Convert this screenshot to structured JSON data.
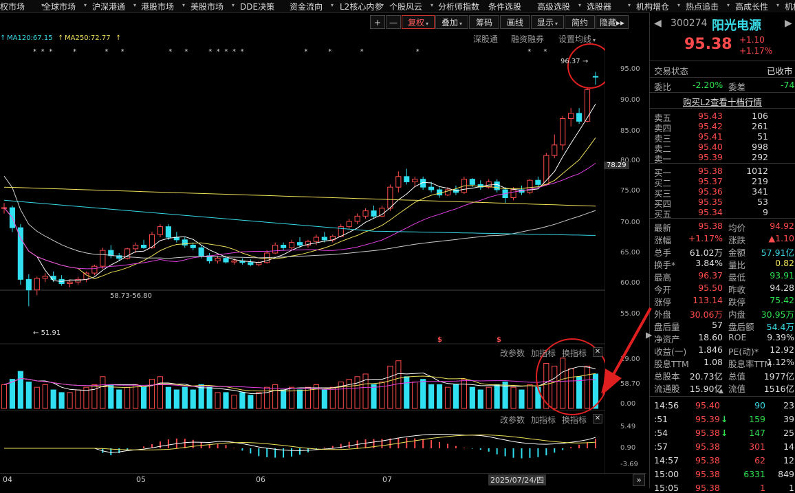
{
  "menu": [
    "权市场",
    "全球市场",
    "沪深港通",
    "港股市场",
    "美股市场",
    "DDE决策",
    "资金流向",
    "L2核心内参",
    "个股风云",
    "分析师指数",
    "条件选股",
    "高级选股",
    "选股器",
    "机构增仓",
    "热点追击",
    "高成长性",
    "机构"
  ],
  "toolbar": {
    "plus": "+",
    "minus": "—",
    "fuquan": "复权",
    "diejia": "叠加",
    "chouma": "筹码",
    "huaxian": "画线",
    "xianshi": "显示",
    "jianyue": "简约",
    "yincang": "隐藏",
    "shengutong": "深股通",
    "rongzi": "融资融券",
    "junxian": "设置均线"
  },
  "ma_labels": {
    "ma120": "MA120:67.15",
    "ma250": "MA250:72.77"
  },
  "axis_price": [
    "95.00",
    "90.00",
    "85.00",
    "80.00",
    "78.29",
    "75.00",
    "70.00",
    "65.00",
    "60.00",
    "55.00"
  ],
  "axis_vol": [
    "19.00",
    "58.70",
    "0.00"
  ],
  "axis_macd": [
    "5.49",
    "0.90",
    "-3.69"
  ],
  "annotations": {
    "high": "96.37",
    "low": "51.91",
    "mid": "58.73-56.80"
  },
  "ind_panel1": {
    "params": "改参数",
    "add": "加指标",
    "switch": "换指标"
  },
  "ind_panel2": {
    "params": "改参数",
    "add": "加指标",
    "switch": "换指标"
  },
  "date_axis": [
    "04",
    "05",
    "06",
    "07"
  ],
  "date_cursor": "2025/07/24/四",
  "stock": {
    "code": "300274",
    "name": "阳光电源",
    "price": "95.38",
    "change": "+1.10",
    "pct": "+1.17%"
  },
  "status": {
    "label": "交易状态",
    "value": "已收市"
  },
  "weibi": {
    "l1": "委比",
    "v1": "-2.20%",
    "l2": "委差",
    "v2": "-74"
  },
  "l2link": "购买L2查看十档行情",
  "asks": [
    {
      "label": "卖五",
      "price": "95.43",
      "vol": "106"
    },
    {
      "label": "卖四",
      "price": "95.42",
      "vol": "261"
    },
    {
      "label": "卖三",
      "price": "95.41",
      "vol": "51"
    },
    {
      "label": "卖二",
      "price": "95.40",
      "vol": "998"
    },
    {
      "label": "卖一",
      "price": "95.39",
      "vol": "292"
    }
  ],
  "bids": [
    {
      "label": "买一",
      "price": "95.38",
      "vol": "1012"
    },
    {
      "label": "买二",
      "price": "95.37",
      "vol": "219"
    },
    {
      "label": "买三",
      "price": "95.36",
      "vol": "341"
    },
    {
      "label": "买四",
      "price": "95.35",
      "vol": "53"
    },
    {
      "label": "买五",
      "price": "95.34",
      "vol": "9"
    }
  ],
  "quote": [
    {
      "l1": "最新",
      "v1": "95.38",
      "c1": "red",
      "l2": "均价",
      "v2": "94.92",
      "c2": "red"
    },
    {
      "l1": "涨幅",
      "v1": "+1.17%",
      "c1": "red",
      "l2": "涨跌",
      "v2": "▲1.10",
      "c2": "red"
    },
    {
      "l1": "总手",
      "v1": "61.02万",
      "c1": "wht",
      "l2": "金额",
      "v2": "57.91亿",
      "c2": "cyan"
    },
    {
      "l1": "换手*",
      "v1": "3.84%",
      "c1": "wht",
      "l2": "量比",
      "v2": "0.82",
      "c2": "yel"
    },
    {
      "l1": "最高",
      "v1": "96.37",
      "c1": "red",
      "l2": "最低",
      "v2": "93.91",
      "c2": "grn"
    },
    {
      "l1": "今开",
      "v1": "95.50",
      "c1": "red",
      "l2": "昨收",
      "v2": "94.28",
      "c2": "wht"
    },
    {
      "l1": "涨停",
      "v1": "113.14",
      "c1": "red",
      "l2": "跌停",
      "v2": "75.42",
      "c2": "grn"
    },
    {
      "l1": "外盘",
      "v1": "30.06万",
      "c1": "red",
      "l2": "内盘",
      "v2": "30.95万",
      "c2": "grn"
    },
    {
      "l1": "盘后量",
      "v1": "57",
      "c1": "wht",
      "l2": "盘后额",
      "v2": "54.4万",
      "c2": "cyan"
    },
    {
      "l1": "净资产",
      "v1": "18.60",
      "c1": "wht",
      "l2": "ROE",
      "v2": "9.39%",
      "c2": "wht"
    },
    {
      "l1": "收益(一)",
      "v1": "1.846",
      "c1": "wht",
      "l2": "PE(动)*",
      "v2": "12.92",
      "c2": "wht"
    },
    {
      "l1": "股息TTM",
      "v1": "1.08",
      "c1": "wht",
      "l2": "股息率TTM",
      "v2": "1.12%",
      "c2": "wht"
    },
    {
      "l1": "总股本",
      "v1": "20.73亿",
      "c1": "wht",
      "l2": "总值",
      "v2": "1977亿",
      "c2": "wht"
    },
    {
      "l1": "流通股",
      "v1": "15.90亿",
      "c1": "wht",
      "l2": "流值",
      "v2": "1516亿",
      "c2": "wht"
    }
  ],
  "ticks": [
    {
      "time": "14:56",
      "price": "95.40",
      "arrow": "",
      "vol": "90",
      "n": "23",
      "vc": "cyan"
    },
    {
      "time": ":51",
      "price": "95.39",
      "arrow": "↓",
      "vol": "159",
      "n": "39",
      "vc": "grn"
    },
    {
      "time": ":54",
      "price": "95.38",
      "arrow": "↓",
      "vol": "147",
      "n": "25",
      "vc": "grn"
    },
    {
      "time": ":57",
      "price": "95.38",
      "arrow": "",
      "vol": "301",
      "n": "14",
      "vc": "red"
    },
    {
      "time": "14:57",
      "price": "95.38",
      "arrow": "",
      "vol": "62",
      "n": "12",
      "vc": "red"
    },
    {
      "time": "15:00",
      "price": "95.38",
      "arrow": "",
      "vol": "6331",
      "n": "849",
      "vc": "grn"
    },
    {
      "time": "15:05",
      "price": "95.38",
      "arrow": "",
      "vol": "1",
      "n": "1",
      "vc": "red"
    }
  ],
  "colors": {
    "up": "#ff4b4b",
    "down": "#30e0f0",
    "ma5": "#ffffff",
    "ma10": "#f0e05a",
    "ma20": "#e040e0",
    "ma60": "#cccccc",
    "ma120": "#39d9e6",
    "ma250": "#f0e05a",
    "highlight": "#e02020"
  },
  "chart_data": {
    "type": "candlestick",
    "ohlc": [
      [
        70.5,
        71.5,
        69.5,
        70.6
      ],
      [
        70.6,
        71.0,
        66.0,
        66.8
      ],
      [
        66.8,
        67.5,
        56.0,
        57.0
      ],
      [
        57.0,
        58.0,
        51.91,
        55.0
      ],
      [
        55.0,
        57.5,
        54.0,
        57.2
      ],
      [
        57.2,
        58.2,
        56.5,
        57.6
      ],
      [
        57.6,
        58.5,
        56.5,
        57.0
      ],
      [
        57.0,
        57.8,
        55.8,
        56.2
      ],
      [
        56.2,
        57.0,
        55.5,
        56.5
      ],
      [
        56.5,
        57.5,
        56.0,
        57.0
      ],
      [
        57.0,
        58.5,
        56.5,
        58.2
      ],
      [
        58.2,
        59.8,
        57.8,
        59.5
      ],
      [
        59.5,
        63.0,
        59.0,
        62.5
      ],
      [
        62.5,
        63.5,
        61.0,
        61.5
      ],
      [
        61.5,
        62.0,
        60.5,
        61.0
      ],
      [
        61.0,
        63.0,
        60.8,
        62.8
      ],
      [
        62.8,
        64.0,
        62.0,
        63.5
      ],
      [
        63.5,
        64.5,
        62.8,
        63.0
      ],
      [
        63.0,
        66.0,
        62.8,
        65.5
      ],
      [
        65.5,
        67.5,
        65.0,
        67.0
      ],
      [
        67.0,
        67.5,
        64.5,
        65.0
      ],
      [
        65.0,
        66.0,
        64.0,
        64.5
      ],
      [
        64.5,
        65.0,
        63.0,
        63.5
      ],
      [
        63.5,
        64.0,
        62.5,
        63.0
      ],
      [
        63.0,
        63.5,
        61.0,
        61.5
      ],
      [
        61.5,
        62.0,
        60.0,
        60.5
      ],
      [
        60.5,
        61.5,
        60.0,
        61.0
      ],
      [
        61.0,
        61.5,
        60.0,
        60.3
      ],
      [
        60.3,
        61.0,
        59.8,
        60.5
      ],
      [
        60.5,
        61.0,
        59.8,
        60.2
      ],
      [
        60.2,
        60.8,
        59.5,
        59.8
      ],
      [
        59.8,
        60.5,
        59.5,
        60.2
      ],
      [
        60.2,
        62.5,
        60.0,
        62.0
      ],
      [
        62.0,
        64.0,
        61.8,
        63.5
      ],
      [
        63.5,
        64.0,
        62.5,
        63.0
      ],
      [
        63.0,
        64.5,
        62.5,
        64.0
      ],
      [
        64.0,
        65.0,
        63.0,
        63.5
      ],
      [
        63.5,
        64.5,
        63.0,
        64.2
      ],
      [
        64.2,
        65.5,
        63.5,
        65.0
      ],
      [
        65.0,
        66.0,
        64.0,
        64.5
      ],
      [
        64.5,
        65.5,
        64.0,
        65.2
      ],
      [
        65.2,
        67.5,
        65.0,
        67.0
      ],
      [
        67.0,
        68.5,
        66.5,
        68.0
      ],
      [
        68.0,
        69.5,
        67.5,
        69.0
      ],
      [
        69.0,
        70.5,
        68.5,
        70.0
      ],
      [
        70.0,
        71.0,
        68.5,
        69.0
      ],
      [
        69.0,
        71.0,
        68.8,
        70.5
      ],
      [
        70.5,
        75.0,
        70.0,
        74.5
      ],
      [
        74.5,
        77.5,
        73.5,
        76.5
      ],
      [
        76.5,
        78.0,
        75.0,
        75.5
      ],
      [
        75.5,
        76.5,
        74.5,
        76.0
      ],
      [
        76.0,
        76.5,
        74.0,
        74.5
      ],
      [
        74.5,
        75.5,
        73.5,
        74.0
      ],
      [
        74.0,
        74.5,
        72.5,
        73.0
      ],
      [
        73.0,
        74.5,
        72.8,
        74.0
      ],
      [
        74.0,
        74.8,
        73.0,
        73.5
      ],
      [
        73.5,
        76.5,
        73.2,
        76.0
      ],
      [
        76.0,
        76.2,
        74.5,
        75.0
      ],
      [
        75.0,
        75.8,
        74.0,
        74.5
      ],
      [
        74.5,
        76.0,
        74.2,
        75.5
      ],
      [
        75.5,
        76.0,
        73.5,
        74.0
      ],
      [
        74.0,
        74.5,
        71.5,
        72.5
      ],
      [
        72.5,
        74.5,
        72.0,
        74.0
      ],
      [
        74.0,
        74.8,
        73.0,
        73.5
      ],
      [
        73.5,
        76.0,
        73.2,
        75.8
      ],
      [
        75.8,
        76.5,
        74.5,
        75.0
      ],
      [
        75.0,
        81.0,
        74.8,
        80.5
      ],
      [
        80.5,
        84.5,
        80.0,
        82.5
      ],
      [
        82.5,
        88.0,
        81.5,
        87.5
      ],
      [
        87.5,
        89.5,
        86.0,
        88.5
      ],
      [
        88.5,
        89.5,
        86.5,
        87.0
      ],
      [
        87.0,
        93.5,
        86.8,
        93.0
      ],
      [
        95.5,
        96.37,
        93.91,
        95.38
      ]
    ],
    "ylim": [
      50,
      98
    ],
    "volume": [
      9,
      11,
      14,
      10,
      8,
      9,
      7,
      6,
      6,
      7,
      8,
      9,
      12,
      9,
      7,
      8,
      9,
      8,
      11,
      12,
      8,
      7,
      8,
      7,
      9,
      8,
      6,
      6,
      5,
      6,
      5,
      6,
      8,
      9,
      7,
      8,
      7,
      8,
      9,
      7,
      8,
      10,
      11,
      12,
      13,
      9,
      10,
      16,
      18,
      12,
      10,
      11,
      9,
      9,
      8,
      9,
      11,
      8,
      7,
      8,
      9,
      10,
      8,
      7,
      9,
      8,
      17,
      16,
      19,
      15,
      12,
      16,
      13
    ]
  }
}
